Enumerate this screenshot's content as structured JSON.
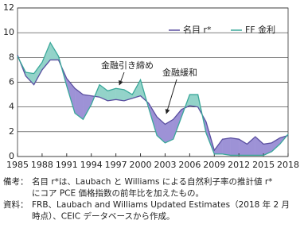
{
  "chart_data": {
    "type": "line",
    "x": [
      1985,
      1986,
      1987,
      1988,
      1989,
      1990,
      1991,
      1992,
      1993,
      1994,
      1995,
      1996,
      1997,
      1998,
      1999,
      2000,
      2001,
      2002,
      2003,
      2004,
      2005,
      2006,
      2007,
      2008,
      2009,
      2010,
      2011,
      2012,
      2013,
      2014,
      2015,
      2016,
      2017,
      2018
    ],
    "series": [
      {
        "name": "名目 r*",
        "color": "#5a4fa0",
        "fill": "#9d92d6",
        "values": [
          8.2,
          6.5,
          5.8,
          7.0,
          7.8,
          7.8,
          6.3,
          5.5,
          5.0,
          4.9,
          4.8,
          4.5,
          4.6,
          4.5,
          4.7,
          4.9,
          4.3,
          3.2,
          2.6,
          3.0,
          3.8,
          4.1,
          4.0,
          2.8,
          0.5,
          1.4,
          1.5,
          1.4,
          1.0,
          1.6,
          1.0,
          1.1,
          1.5,
          1.7
        ]
      },
      {
        "name": "FF 金利",
        "color": "#3aa89a",
        "fill": "#93d3c9",
        "values": [
          8.1,
          6.8,
          6.7,
          7.6,
          9.2,
          8.1,
          5.7,
          3.5,
          3.0,
          4.2,
          5.8,
          5.3,
          5.5,
          5.4,
          5.0,
          6.2,
          3.9,
          1.7,
          1.1,
          1.4,
          3.2,
          5.0,
          5.0,
          1.9,
          0.2,
          0.2,
          0.1,
          0.1,
          0.1,
          0.1,
          0.1,
          0.4,
          1.0,
          1.8
        ]
      }
    ],
    "xlim": [
      1985,
      2018
    ],
    "xticks": [
      1985,
      1988,
      1991,
      1994,
      1997,
      2000,
      2003,
      2006,
      2009,
      2012,
      2015,
      2018
    ],
    "ylim": [
      0,
      12
    ],
    "yticks": [
      0,
      2,
      4,
      6,
      8,
      10,
      12
    ],
    "grid": true,
    "annotations": [
      "金融引き締め",
      "金融緩和"
    ],
    "notes": [
      {
        "label": "備考：",
        "lines": [
          "名目 r*は、Laubach と Williams による自然利子率の推計値 r*",
          "にコア PCE 価格指数の前年比を加えたもの。"
        ]
      },
      {
        "label": "資料：",
        "lines": [
          "FRB、Laubach and Williams Updated Estimates（2018 年 2 月",
          "時点）、CEIC データベースから作成。"
        ]
      }
    ]
  }
}
